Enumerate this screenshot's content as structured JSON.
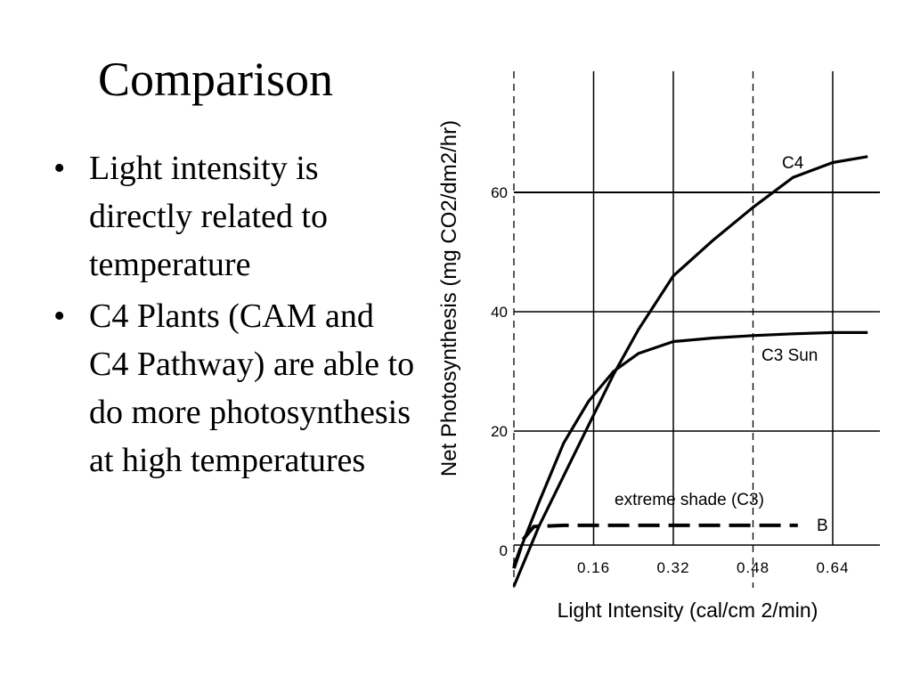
{
  "slide": {
    "title": "Comparison",
    "bullets": [
      "Light intensity is directly related to temperature",
      "C4 Plants (CAM and C4 Pathway) are able to do more photosynthesis at high temperatures"
    ]
  },
  "chart_data": {
    "type": "line",
    "xlabel": "Light Intensity (cal/cm 2/min)",
    "ylabel": "Net Photosynthesis (mg CO2/dm2/hr)",
    "x_ticks": [
      0.16,
      0.32,
      0.48,
      0.64
    ],
    "y_ticks": [
      0,
      20,
      40,
      60
    ],
    "xlim": [
      0,
      0.73
    ],
    "ylim": [
      -7,
      80
    ],
    "grid": true,
    "annotations": [
      "C4",
      "C3 Sun",
      "extreme shade (C3)",
      "B"
    ],
    "series": [
      {
        "name": "C4",
        "style": "solid",
        "points": [
          [
            0,
            -6
          ],
          [
            0.05,
            4
          ],
          [
            0.1,
            12.5
          ],
          [
            0.15,
            21
          ],
          [
            0.2,
            29.5
          ],
          [
            0.25,
            37
          ],
          [
            0.32,
            46
          ],
          [
            0.4,
            52
          ],
          [
            0.48,
            57.5
          ],
          [
            0.56,
            62.5
          ],
          [
            0.64,
            65
          ],
          [
            0.71,
            66
          ]
        ]
      },
      {
        "name": "C3 Sun",
        "style": "solid",
        "points": [
          [
            0,
            -2.5
          ],
          [
            0.05,
            8
          ],
          [
            0.1,
            18
          ],
          [
            0.15,
            25
          ],
          [
            0.2,
            30
          ],
          [
            0.25,
            33
          ],
          [
            0.32,
            35
          ],
          [
            0.4,
            35.6
          ],
          [
            0.48,
            36
          ],
          [
            0.56,
            36.3
          ],
          [
            0.64,
            36.5
          ],
          [
            0.71,
            36.5
          ]
        ]
      },
      {
        "name": "extreme shade (C3)",
        "style": "dashed",
        "points": [
          [
            0,
            -3
          ],
          [
            0.02,
            2
          ],
          [
            0.04,
            4
          ],
          [
            0.1,
            4.2
          ],
          [
            0.2,
            4.2
          ],
          [
            0.4,
            4.2
          ],
          [
            0.57,
            4.2
          ]
        ]
      }
    ],
    "colors": {
      "line": "#000000",
      "grid": "#000000",
      "background": "#ffffff"
    }
  }
}
